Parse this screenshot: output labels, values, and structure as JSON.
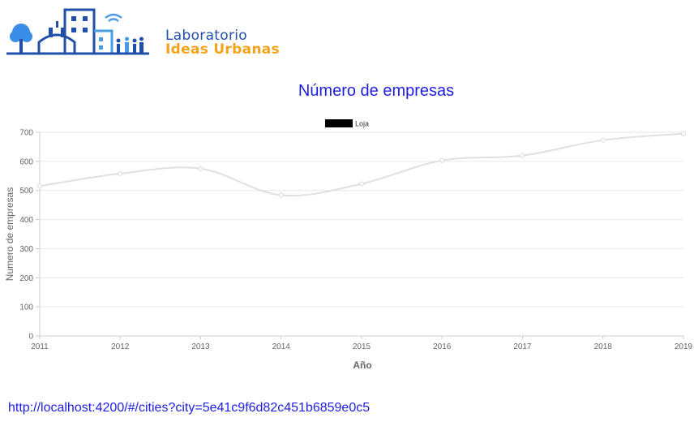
{
  "logo": {
    "line1": "Laboratorio",
    "line2": "Ideas Urbanas",
    "colors": {
      "blue": "#1f4fa8",
      "lightblue": "#4a9be6",
      "orange": "#f2a31b"
    }
  },
  "footer": {
    "url": "http://localhost:4200/#/cities?city=5e41c9f6d82c451b6859e0c5"
  },
  "chart_data": {
    "type": "line",
    "title": "Número de empresas",
    "xlabel": "Año",
    "ylabel": "Numero de empresas",
    "categories": [
      "2011",
      "2012",
      "2013",
      "2014",
      "2015",
      "2016",
      "2017",
      "2018",
      "2019"
    ],
    "series": [
      {
        "name": "Loja",
        "values": [
          515,
          558,
          575,
          484,
          523,
          603,
          620,
          673,
          695
        ],
        "color": "#e0e0e0",
        "legend_color": "#000000"
      }
    ],
    "ylim": [
      0,
      700
    ],
    "yticks": [
      0,
      100,
      200,
      300,
      400,
      500,
      600,
      700
    ],
    "grid": true,
    "legend_position": "top",
    "smooth": true
  }
}
